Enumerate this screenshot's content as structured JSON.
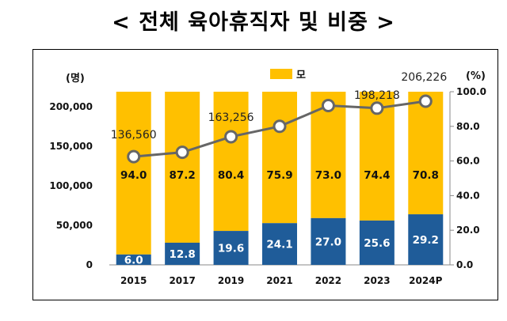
{
  "title": "< 전체 육아휴직자 및 비중 >",
  "chart_data": {
    "type": "bar",
    "stacked": true,
    "categories": [
      "2015",
      "2017",
      "2019",
      "2021",
      "2022",
      "2023",
      "2024P"
    ],
    "left_unit": "(명)",
    "right_unit": "(%)",
    "left_ticks": [
      "0",
      "50,000",
      "100,000",
      "150,000",
      "200,000"
    ],
    "right_ticks": [
      "0.0",
      "20.0",
      "40.0",
      "60.0",
      "80.0",
      "100.0"
    ],
    "ylim_right": [
      0,
      100
    ],
    "legend": "모",
    "legend_position": "top-center",
    "series": [
      {
        "name": "",
        "color": "#1F5C99",
        "values": [
          6.0,
          12.8,
          19.6,
          24.1,
          27.0,
          25.6,
          29.2
        ],
        "labels": [
          "6.0",
          "12.8",
          "19.6",
          "24.1",
          "27.0",
          "25.6",
          "29.2"
        ]
      },
      {
        "name": "모",
        "color": "#FFC000",
        "values": [
          94.0,
          87.2,
          80.4,
          75.9,
          73.0,
          74.4,
          70.8
        ],
        "labels": [
          "94.0",
          "87.2",
          "80.4",
          "75.9",
          "73.0",
          "74.4",
          "70.8"
        ]
      }
    ],
    "line": {
      "color": "#666666",
      "values": [
        136560,
        null,
        163256,
        null,
        null,
        198218,
        206226
      ],
      "labels": [
        "136,560",
        "",
        "163,256",
        "",
        "",
        "198,218",
        "206,226"
      ],
      "point_values": [
        62.5,
        65.0,
        74.0,
        80.0,
        92.0,
        90.5,
        94.5
      ]
    }
  }
}
